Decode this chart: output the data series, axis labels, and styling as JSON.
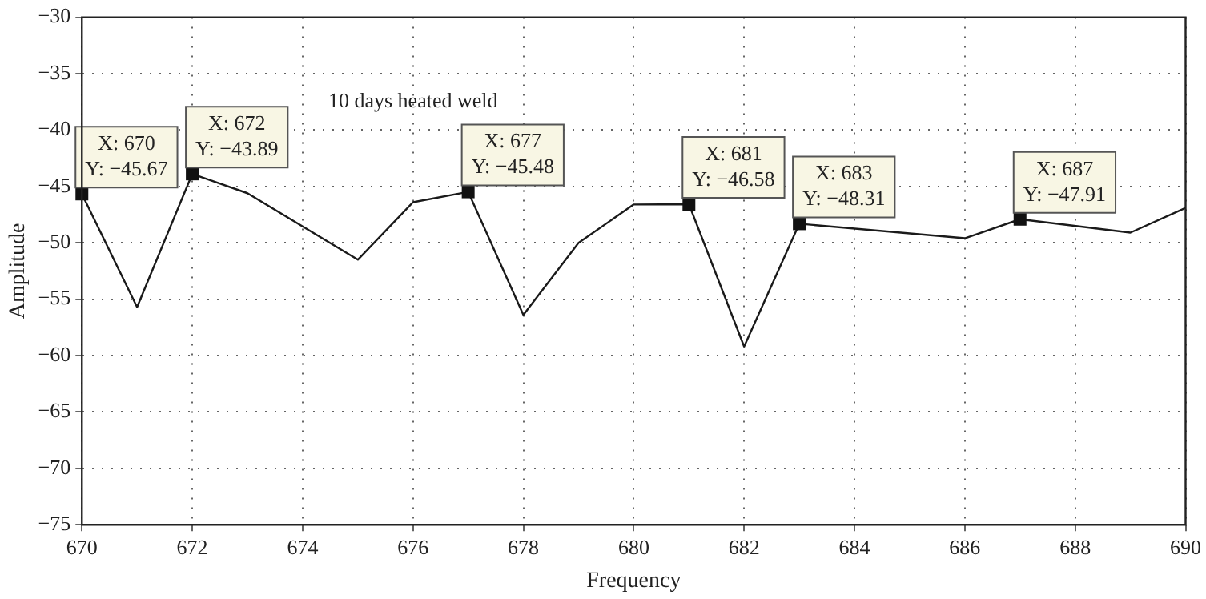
{
  "chart_data": {
    "type": "line",
    "title": "10 days heated weld",
    "xlabel": "Frequency",
    "ylabel": "Amplitude",
    "x": [
      670,
      671,
      672,
      673,
      675,
      676,
      677,
      678,
      679,
      680,
      681,
      682,
      683,
      686,
      687,
      689,
      690
    ],
    "series": [
      {
        "color": "#1a1a1a",
        "values": [
          -45.67,
          -55.7,
          -43.89,
          -45.6,
          -51.5,
          -46.4,
          -45.48,
          -56.4,
          -50.0,
          -46.6,
          -46.58,
          -59.2,
          -48.31,
          -49.6,
          -47.91,
          -49.1,
          -46.9
        ]
      }
    ],
    "xlim": [
      670,
      690
    ],
    "xticks": [
      670,
      672,
      674,
      676,
      678,
      680,
      682,
      684,
      686,
      688,
      690
    ],
    "ylim": [
      -75,
      -30
    ],
    "yticks": [
      -75,
      -70,
      -65,
      -60,
      -55,
      -50,
      -45,
      -40,
      -35,
      -30
    ],
    "grid": true,
    "legend": false,
    "marker": "none",
    "line_style": "solid",
    "annotations": [
      {
        "text": "X: 670\nY: −45.67",
        "x": 670,
        "y": -45.67
      },
      {
        "text": "X: 672\nY: −43.89",
        "x": 672,
        "y": -43.89
      },
      {
        "text": "X: 677\nY: −45.48",
        "x": 677,
        "y": -45.48
      },
      {
        "text": "X: 681\nY: −46.58",
        "x": 681,
        "y": -46.58
      },
      {
        "text": "X: 683\nY: −48.31",
        "x": 683,
        "y": -48.31
      },
      {
        "text": "X: 687\nY: −47.91",
        "x": 687,
        "y": -47.91
      }
    ]
  }
}
